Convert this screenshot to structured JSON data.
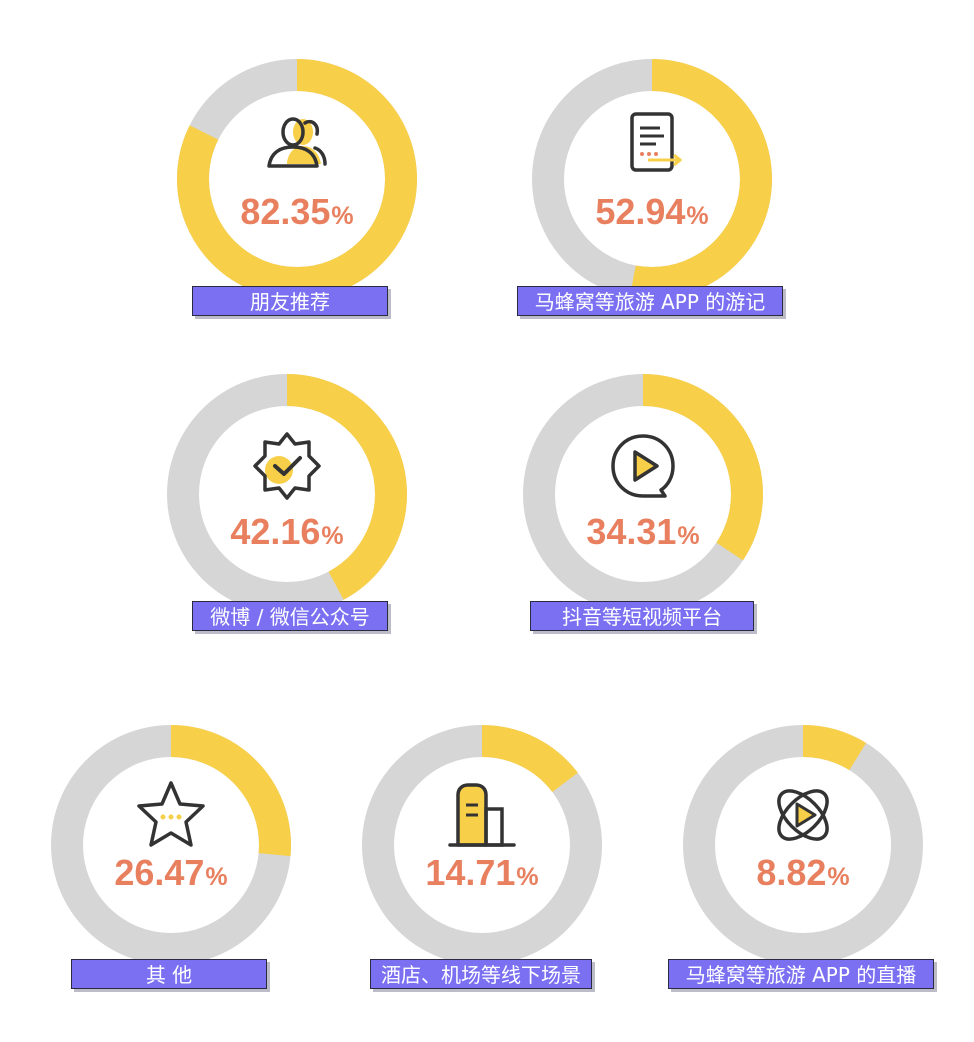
{
  "chart_data": {
    "type": "donut",
    "items": [
      {
        "label": "朋友推荐",
        "value": 82.35,
        "display": "82.35",
        "icon": "people-icon"
      },
      {
        "label": "马蜂窝等旅游 APP 的游记",
        "value": 52.94,
        "display": "52.94",
        "icon": "document-icon"
      },
      {
        "label": "微博 / 微信公众号",
        "value": 42.16,
        "display": "42.16",
        "icon": "verified-badge-icon"
      },
      {
        "label": "抖音等短视频平台",
        "value": 34.31,
        "display": "34.31",
        "icon": "play-circle-icon"
      },
      {
        "label": "其 他",
        "value": 26.47,
        "display": "26.47",
        "icon": "star-icon"
      },
      {
        "label": "酒店、机场等线下场景",
        "value": 14.71,
        "display": "14.71",
        "icon": "building-icon"
      },
      {
        "label": "马蜂窝等旅游 APP 的直播",
        "value": 8.82,
        "display": "8.82",
        "icon": "orbit-play-icon"
      }
    ],
    "unit": "%",
    "colors": {
      "value": "#f8cf48",
      "remainder": "#d6d6d6",
      "percent_text": "#e8805f",
      "label_bg": "#7b70f2"
    }
  }
}
